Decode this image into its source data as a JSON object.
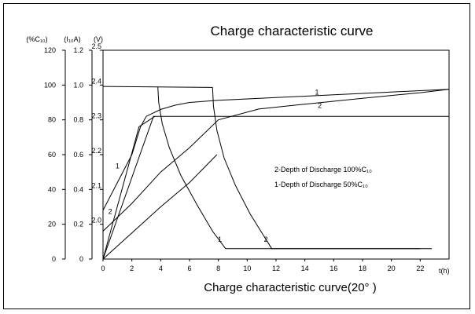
{
  "chart_data": {
    "type": "line",
    "title": "Charge characteristic curve",
    "caption": "Charge characteristic curve(20° )",
    "x_axis": {
      "label": "t(h)",
      "range": [
        0,
        24
      ],
      "ticks": [
        "0",
        "2",
        "4",
        "6",
        "8",
        "10",
        "12",
        "14",
        "16",
        "18",
        "20",
        "22"
      ]
    },
    "y_axes": [
      {
        "label": "(%C₁₀)",
        "ticks": [
          "0",
          "20",
          "40",
          "60",
          "80",
          "100",
          "120"
        ],
        "range": [
          0,
          120
        ]
      },
      {
        "label": "(I₁₀A)",
        "ticks": [
          "0",
          "0.2",
          "0.4",
          "0.6",
          "0.8",
          "1.0",
          "1.2"
        ],
        "range": [
          0,
          1.2
        ]
      },
      {
        "label": "(V)",
        "ticks": [
          "2.0",
          "2.1",
          "2.2",
          "2.3",
          "2.4",
          "2.5"
        ],
        "tick_values": [
          2.0,
          2.1,
          2.2,
          2.3,
          2.4,
          2.5
        ],
        "range": [
          1.9,
          2.5
        ]
      }
    ],
    "legend": [
      "2-Depth of Discharge 100%C₁₀",
      "1-Depth of Discharge 50%C₁₀"
    ],
    "series": [
      {
        "name": "1",
        "label_at": [
          1,
          2.16
        ],
        "points": [
          [
            0,
            2.04
          ],
          [
            1,
            2.12
          ],
          [
            2,
            2.2
          ],
          [
            2.6,
            2.28
          ],
          [
            3,
            2.31
          ],
          [
            4,
            2.33
          ],
          [
            5,
            2.342
          ],
          [
            6,
            2.35
          ],
          [
            8,
            2.356
          ],
          [
            12,
            2.364
          ],
          [
            16,
            2.372
          ],
          [
            20,
            2.38
          ],
          [
            24,
            2.388
          ]
        ]
      },
      {
        "name": "2",
        "label_at": [
          0.5,
          2.03
        ],
        "points": [
          [
            0,
            1.98
          ],
          [
            2,
            2.06
          ],
          [
            4,
            2.15
          ],
          [
            6,
            2.22
          ],
          [
            8,
            2.3
          ],
          [
            10.8,
            2.331
          ],
          [
            14,
            2.345
          ],
          [
            18,
            2.362
          ],
          [
            22,
            2.378
          ],
          [
            24,
            2.388
          ]
        ]
      },
      {
        "name": "",
        "points": [
          [
            0,
            2.396
          ],
          [
            7.6,
            2.393
          ]
        ]
      },
      {
        "name": "",
        "points": [
          [
            0,
            1.9
          ],
          [
            3.5,
            2.31
          ],
          [
            6,
            2.31
          ],
          [
            24,
            2.31
          ]
        ]
      },
      {
        "name": "",
        "points": [
          [
            0,
            1.9
          ],
          [
            2.5,
            2.28
          ],
          [
            3.6,
            2.31
          ]
        ]
      },
      {
        "name": "",
        "points": [
          [
            0,
            1.9
          ],
          [
            2,
            1.975
          ],
          [
            4,
            2.05
          ],
          [
            6,
            2.12
          ],
          [
            7.9,
            2.2
          ]
        ]
      },
      {
        "name": "1",
        "label_at": [
          8.1,
          1.95
        ],
        "points": [
          [
            3.8,
            2.394
          ],
          [
            3.86,
            2.35
          ],
          [
            4.1,
            2.29
          ],
          [
            4.6,
            2.22
          ],
          [
            5.4,
            2.14
          ],
          [
            6.6,
            2.05
          ],
          [
            7.6,
            1.98
          ],
          [
            8.5,
            1.93
          ],
          [
            12,
            1.93
          ],
          [
            22,
            1.93
          ]
        ]
      },
      {
        "name": "2",
        "label_at": [
          11.3,
          1.95
        ],
        "points": [
          [
            7.6,
            2.393
          ],
          [
            7.66,
            2.34
          ],
          [
            7.9,
            2.27
          ],
          [
            8.4,
            2.19
          ],
          [
            9.2,
            2.11
          ],
          [
            10.2,
            2.03
          ],
          [
            11.1,
            1.97
          ],
          [
            11.7,
            1.93
          ],
          [
            17,
            1.93
          ],
          [
            22.8,
            1.93
          ]
        ]
      }
    ]
  }
}
